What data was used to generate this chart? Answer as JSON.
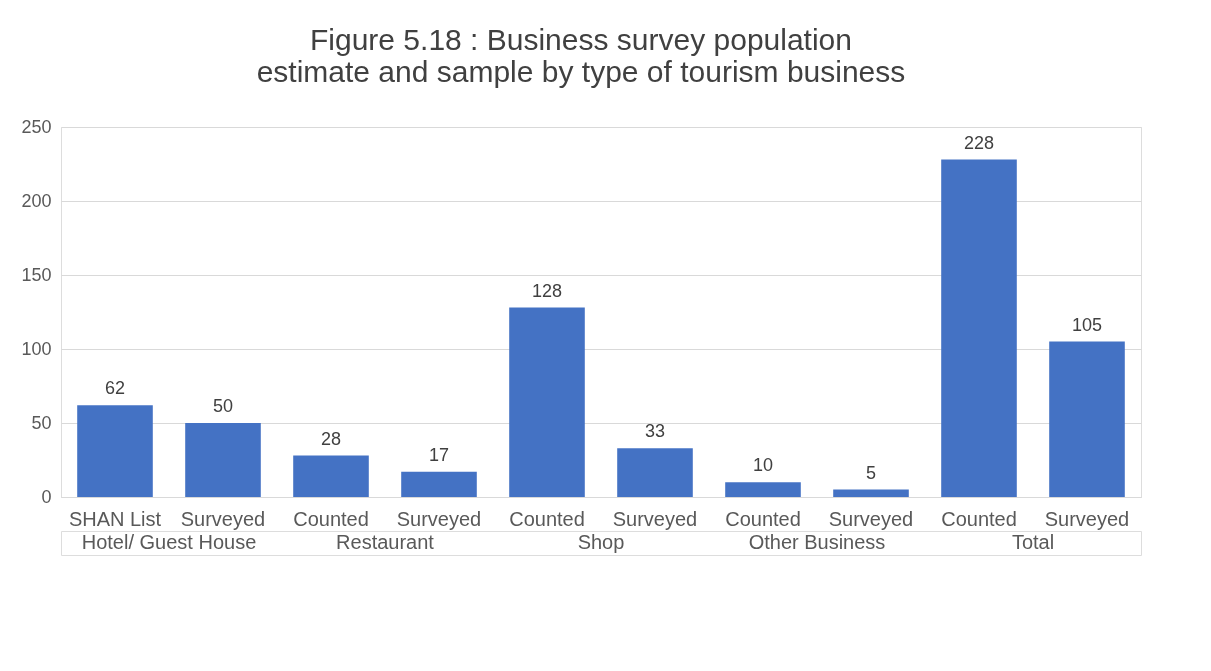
{
  "chart_data": {
    "type": "bar",
    "title": "Figure 5.18 : Business survey population estimate and sample by type of tourism business",
    "categories": [
      "SHAN List",
      "Surveyed",
      "Counted",
      "Surveyed",
      "Counted",
      "Surveyed",
      "Counted",
      "Surveyed",
      "Counted",
      "Surveyed"
    ],
    "values": [
      62,
      50,
      28,
      17,
      128,
      33,
      10,
      5,
      228,
      105
    ],
    "color": "#4472c4",
    "ylim": [
      0,
      250
    ],
    "yticks": [
      0,
      50,
      100,
      150,
      200,
      250
    ],
    "grid": "y",
    "data_labels": true,
    "annotations": [
      "Hotel/ Guest House",
      "Restaurant",
      "Shop",
      "Other Business",
      "Total"
    ]
  }
}
